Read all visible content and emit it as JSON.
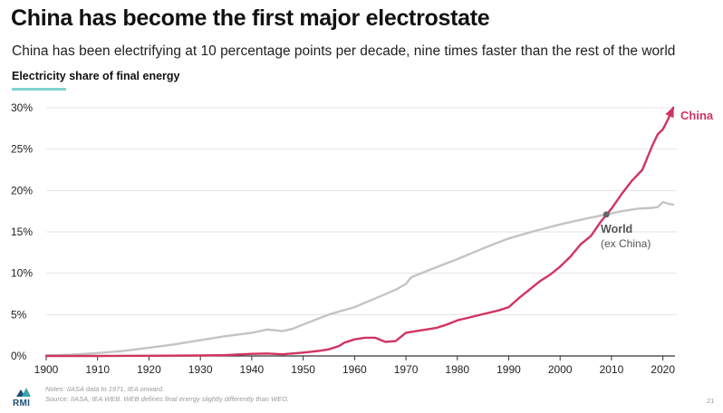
{
  "header": {
    "title": "China has become the first major electrostate",
    "subtitle": "China has been electrifying at 10 percentage points per decade, nine times faster than the rest of the world",
    "panel_label": "Electricity share of final energy"
  },
  "colors": {
    "china": "#d03460",
    "world": "#c4c4c4",
    "marker": "#666666",
    "accent_underline": "#7fd3d0",
    "grid": "#e3e3e3"
  },
  "chart_data": {
    "type": "line",
    "title": "Electricity share of final energy",
    "xlabel": "",
    "ylabel": "",
    "xlim": [
      1900,
      2022
    ],
    "ylim": [
      0,
      30
    ],
    "x_ticks": [
      1900,
      1910,
      1920,
      1930,
      1940,
      1950,
      1960,
      1970,
      1980,
      1990,
      2000,
      2010,
      2020
    ],
    "y_ticks": [
      0,
      5,
      10,
      15,
      20,
      25,
      30
    ],
    "y_tick_labels": [
      "0%",
      "5%",
      "10%",
      "15%",
      "20%",
      "25%",
      "30%"
    ],
    "grid": "horizontal",
    "annotation_point": {
      "x": 2009,
      "y": 17.1
    },
    "series": [
      {
        "name": "China",
        "label": "China",
        "arrow_end": true,
        "points": [
          [
            1900,
            0
          ],
          [
            1910,
            0
          ],
          [
            1920,
            0.02
          ],
          [
            1930,
            0.05
          ],
          [
            1935,
            0.1
          ],
          [
            1940,
            0.25
          ],
          [
            1943,
            0.3
          ],
          [
            1946,
            0.2
          ],
          [
            1950,
            0.4
          ],
          [
            1953,
            0.6
          ],
          [
            1955,
            0.8
          ],
          [
            1957,
            1.2
          ],
          [
            1958,
            1.6
          ],
          [
            1960,
            2.0
          ],
          [
            1962,
            2.2
          ],
          [
            1964,
            2.2
          ],
          [
            1966,
            1.7
          ],
          [
            1968,
            1.8
          ],
          [
            1970,
            2.8
          ],
          [
            1972,
            3.0
          ],
          [
            1974,
            3.2
          ],
          [
            1976,
            3.4
          ],
          [
            1978,
            3.8
          ],
          [
            1980,
            4.3
          ],
          [
            1982,
            4.6
          ],
          [
            1984,
            4.9
          ],
          [
            1986,
            5.2
          ],
          [
            1988,
            5.5
          ],
          [
            1990,
            5.9
          ],
          [
            1992,
            7.0
          ],
          [
            1994,
            8.0
          ],
          [
            1996,
            9.0
          ],
          [
            1998,
            9.8
          ],
          [
            2000,
            10.8
          ],
          [
            2002,
            12.0
          ],
          [
            2004,
            13.5
          ],
          [
            2006,
            14.5
          ],
          [
            2008,
            16.3
          ],
          [
            2010,
            17.8
          ],
          [
            2012,
            19.6
          ],
          [
            2014,
            21.2
          ],
          [
            2016,
            22.5
          ],
          [
            2017,
            24.0
          ],
          [
            2018,
            25.5
          ],
          [
            2019,
            26.8
          ],
          [
            2020,
            27.4
          ],
          [
            2021,
            28.6
          ],
          [
            2022,
            30.0
          ]
        ]
      },
      {
        "name": "World (ex China)",
        "label": "World",
        "sublabel": "(ex China)",
        "arrow_end": false,
        "points": [
          [
            1900,
            0.05
          ],
          [
            1905,
            0.15
          ],
          [
            1910,
            0.35
          ],
          [
            1915,
            0.6
          ],
          [
            1920,
            1.0
          ],
          [
            1925,
            1.4
          ],
          [
            1930,
            1.9
          ],
          [
            1935,
            2.4
          ],
          [
            1940,
            2.8
          ],
          [
            1943,
            3.2
          ],
          [
            1946,
            3.0
          ],
          [
            1948,
            3.3
          ],
          [
            1950,
            3.8
          ],
          [
            1955,
            5.0
          ],
          [
            1960,
            5.9
          ],
          [
            1965,
            7.2
          ],
          [
            1968,
            8.0
          ],
          [
            1970,
            8.7
          ],
          [
            1971,
            9.5
          ],
          [
            1975,
            10.5
          ],
          [
            1980,
            11.7
          ],
          [
            1985,
            13.0
          ],
          [
            1990,
            14.2
          ],
          [
            1995,
            15.1
          ],
          [
            2000,
            15.9
          ],
          [
            2005,
            16.6
          ],
          [
            2009,
            17.1
          ],
          [
            2012,
            17.5
          ],
          [
            2015,
            17.8
          ],
          [
            2018,
            17.9
          ],
          [
            2019,
            18.0
          ],
          [
            2020,
            18.6
          ],
          [
            2021,
            18.4
          ],
          [
            2022,
            18.3
          ]
        ]
      }
    ]
  },
  "footer": {
    "logo_text": "RMI",
    "notes": "Notes: IIASA data to 1971, IEA onward.",
    "source": "Source: IIASA, IEA WEB. WEB defines final energy slightly differently than WEO.",
    "page_number": "21"
  }
}
